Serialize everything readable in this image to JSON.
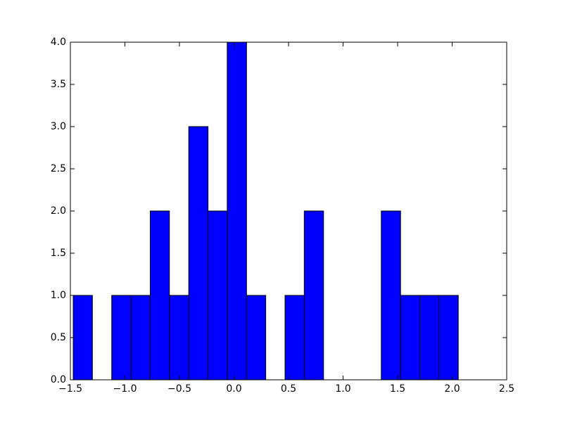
{
  "chart_data": {
    "type": "histogram",
    "bins": [
      -1.474,
      -1.298,
      -1.121,
      -0.944,
      -0.768,
      -0.592,
      -0.415,
      -0.238,
      -0.062,
      0.115,
      0.291,
      0.468,
      0.644,
      0.821,
      0.997,
      1.174,
      1.35,
      1.527,
      1.703,
      1.88,
      2.056
    ],
    "values": [
      1,
      0,
      1,
      1,
      2,
      1,
      3,
      2,
      4,
      1,
      0,
      1,
      2,
      0,
      0,
      0,
      2,
      1,
      1,
      1
    ],
    "color": "#0000ff",
    "xlim": [
      -1.5,
      2.5
    ],
    "xticks": [
      {
        "value": -1.5,
        "label": "−1.5"
      },
      {
        "value": -1.0,
        "label": "−1.0"
      },
      {
        "value": -0.5,
        "label": "−0.5"
      },
      {
        "value": 0.0,
        "label": "0.0"
      },
      0.5,
      {
        "value": 1.0,
        "label": "1.0"
      },
      1.5,
      {
        "value": 2.0,
        "label": "2.0"
      },
      2.5
    ],
    "ylim": [
      0,
      4
    ],
    "yticks": [
      {
        "value": 0,
        "label": "0.0"
      },
      0.5,
      {
        "value": 1,
        "label": "1.0"
      },
      1.5,
      {
        "value": 2,
        "label": "2.0"
      },
      2.5,
      {
        "value": 3,
        "label": "3.0"
      },
      3.5,
      {
        "value": 4,
        "label": "4.0"
      }
    ],
    "grid": false
  }
}
